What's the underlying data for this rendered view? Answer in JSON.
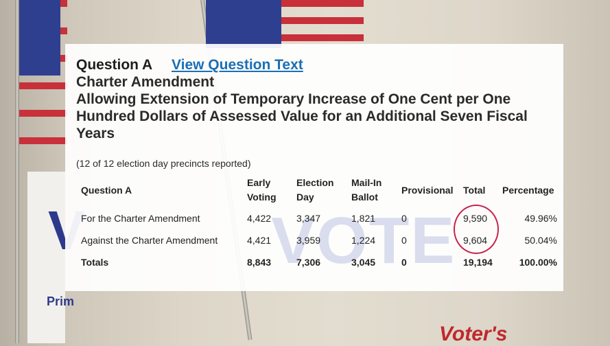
{
  "question": {
    "label": "Question A",
    "link_text": "View Question Text",
    "type": "Charter Amendment",
    "title_lines": [
      "Allowing Extension of Temporary Increase of One Cent per One",
      "Hundred Dollars of Assessed Value for an Additional Seven Fiscal",
      "Years"
    ],
    "precincts_reported": "(12 of 12 election day precincts reported)"
  },
  "table": {
    "headers": {
      "question": "Question A",
      "early_1": "Early",
      "early_2": "Voting",
      "election_1": "Election",
      "election_2": "Day",
      "mail_1": "Mail-In",
      "mail_2": "Ballot",
      "provisional": "Provisional",
      "total": "Total",
      "percentage": "Percentage"
    },
    "rows": [
      {
        "choice": "For the Charter Amendment",
        "early": "4,422",
        "election_day": "3,347",
        "mail_in": "1,821",
        "provisional": "0",
        "total": "9,590",
        "percentage": "49.96%"
      },
      {
        "choice": "Against the Charter Amendment",
        "early": "4,421",
        "election_day": "3,959",
        "mail_in": "1,224",
        "provisional": "0",
        "total": "9,604",
        "percentage": "50.04%"
      }
    ],
    "totals": {
      "label": "Totals",
      "early": "8,843",
      "election_day": "7,306",
      "mail_in": "3,045",
      "provisional": "0",
      "total": "19,194",
      "percentage": "100.00%"
    }
  },
  "background": {
    "vote_watermark": "VOTE",
    "left_sign_letter": "V",
    "left_sign_text": "Prim",
    "bottom_sign_text": "Voter's"
  },
  "colors": {
    "link": "#1a6fb5",
    "highlight_circle": "#c8224a",
    "flag_red": "#c8303a",
    "flag_blue": "#2f3f8f"
  }
}
